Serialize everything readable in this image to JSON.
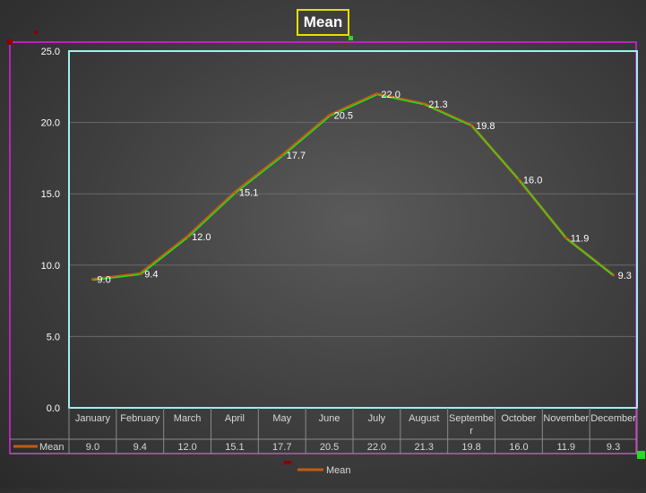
{
  "chart_data": {
    "type": "line",
    "title": "Mean",
    "categories": [
      "January",
      "February",
      "March",
      "April",
      "May",
      "June",
      "July",
      "August",
      "September",
      "October",
      "November",
      "December"
    ],
    "category_lines": [
      [
        "January"
      ],
      [
        "February"
      ],
      [
        "March"
      ],
      [
        "April"
      ],
      [
        "May"
      ],
      [
        "June"
      ],
      [
        "July"
      ],
      [
        "August"
      ],
      [
        "Septembe",
        "r"
      ],
      [
        "October"
      ],
      [
        "November"
      ],
      [
        "December"
      ]
    ],
    "series": [
      {
        "name": "Mean",
        "values": [
          9.0,
          9.4,
          12.0,
          15.1,
          17.7,
          20.5,
          22.0,
          21.3,
          19.8,
          16.0,
          11.9,
          9.3
        ],
        "color": "#c55a11"
      }
    ],
    "highlight_color": "#22dd22",
    "ylim": [
      0,
      25
    ],
    "yticks": [
      "0.0",
      "5.0",
      "10.0",
      "15.0",
      "20.0",
      "25.0"
    ],
    "grid": true,
    "data_table": true,
    "legend_position": "bottom",
    "colors": {
      "title_border": "#e8e000",
      "outer_frame": "#e020e0",
      "plot_frame": "#a0f0f0",
      "text": "#ffffff",
      "table_text": "#d8d8d8"
    }
  }
}
